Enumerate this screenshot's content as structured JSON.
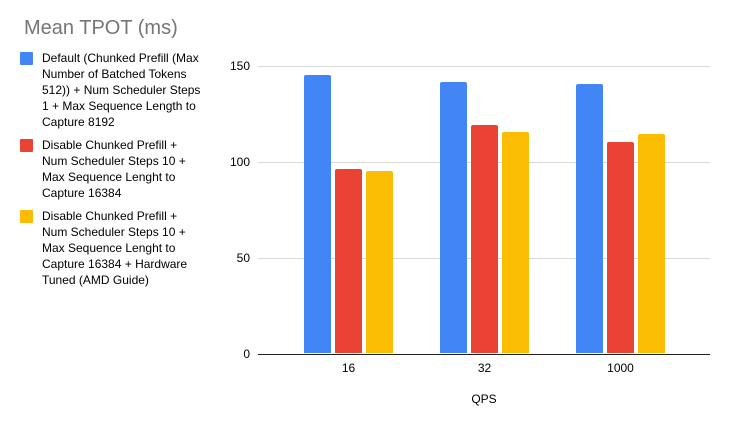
{
  "chart_data": {
    "type": "bar",
    "title": "Mean TPOT (ms)",
    "xlabel": "QPS",
    "ylabel": "",
    "ylim": [
      0,
      150
    ],
    "yticks": [
      0,
      50,
      100,
      150
    ],
    "grid": true,
    "legend_position": "left",
    "categories": [
      "16",
      "32",
      "1000"
    ],
    "series": [
      {
        "name": "Default (Chunked Prefill (Max Number of Batched Tokens 512)) + Num Scheduler Steps 1 + Max Sequence Length to Capture 8192",
        "legend_lines": [
          "Default (Chunked Prefill (Max",
          "Number of Batched Tokens",
          "512)) + Num Scheduler Steps",
          "1 + Max Sequence Length to",
          "Capture 8192"
        ],
        "color": "#4285F4",
        "values": [
          145,
          141,
          140
        ]
      },
      {
        "name": "Disable Chunked Prefill + Num Scheduler Steps 10 + Max Sequence Lenght to Capture 16384",
        "legend_lines": [
          "Disable Chunked Prefill +",
          "Num Scheduler Steps 10 +",
          "Max Sequence Lenght to",
          "Capture 16384"
        ],
        "color": "#EA4335",
        "values": [
          96,
          119,
          110
        ]
      },
      {
        "name": "Disable Chunked Prefill + Num Scheduler Steps 10 + Max Sequence Lenght to Capture 16384 + Hardware Tuned (AMD Guide)",
        "legend_lines": [
          "Disable Chunked Prefill +",
          "Num Scheduler Steps 10 +",
          "Max Sequence Lenght to",
          "Capture 16384 + Hardware",
          "Tuned (AMD Guide)"
        ],
        "color": "#FBBC04",
        "values": [
          95,
          115,
          114
        ]
      }
    ]
  },
  "colors": {
    "title_text": "#757575",
    "axis_text": "#000000",
    "gridline": "#dadada",
    "axis_line": "#222222",
    "background": "#ffffff"
  }
}
